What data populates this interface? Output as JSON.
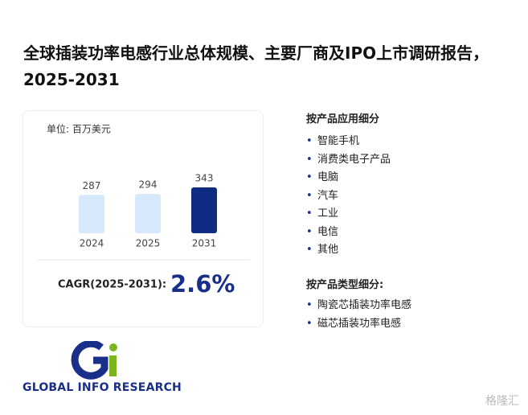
{
  "header": {
    "title": "全球插装功率电感行业总体规模、主要厂商及IPO上市调研报告，2025-2031"
  },
  "chart_data": {
    "type": "bar",
    "unit": "单位: 百万美元",
    "categories": [
      "2024",
      "2025",
      "2031"
    ],
    "values": [
      287,
      294,
      343
    ],
    "colors": [
      "#d6e8fb",
      "#d6e8fb",
      "#0e2c82"
    ],
    "cagr_label": "CAGR(2025-2031):",
    "cagr_value": "2.6%"
  },
  "segments": [
    {
      "title": "按产品应用细分",
      "items": [
        "智能手机",
        "消费类电子产品",
        "电脑",
        "汽车",
        "工业",
        "电信",
        "其他"
      ]
    },
    {
      "title": "按产品类型细分:",
      "items": [
        "陶瓷芯插装功率电感",
        "磁芯插装功率电感"
      ]
    }
  ],
  "brand": "GLOBAL INFO RESEARCH",
  "watermark": "格隆汇"
}
